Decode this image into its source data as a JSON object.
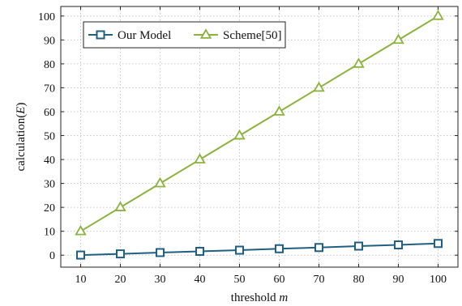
{
  "chart_data": {
    "type": "line",
    "xlabel_text": "threshold ",
    "xlabel_var": "m",
    "ylabel_text": "calculation(",
    "ylabel_var": "E",
    "ylabel_close": ")",
    "x": [
      10,
      20,
      30,
      40,
      50,
      60,
      70,
      80,
      90,
      100
    ],
    "xlim": [
      5,
      105
    ],
    "ylim": [
      -5,
      104
    ],
    "xticks": [
      10,
      20,
      30,
      40,
      50,
      60,
      70,
      80,
      90,
      100
    ],
    "yticks": [
      0,
      10,
      20,
      30,
      40,
      50,
      60,
      70,
      80,
      90,
      100
    ],
    "grid": true,
    "legend_position": "top-left",
    "series": [
      {
        "name": "Our Model",
        "color": "#1f5f82",
        "marker": "square",
        "values": [
          0.05,
          0.55,
          1.1,
          1.6,
          2.1,
          2.7,
          3.2,
          3.8,
          4.3,
          4.9
        ]
      },
      {
        "name": "Scheme[50]",
        "color": "#8bb23c",
        "marker": "triangle",
        "values": [
          10,
          20,
          30,
          40,
          50,
          60,
          70,
          80,
          90,
          100
        ]
      }
    ]
  }
}
